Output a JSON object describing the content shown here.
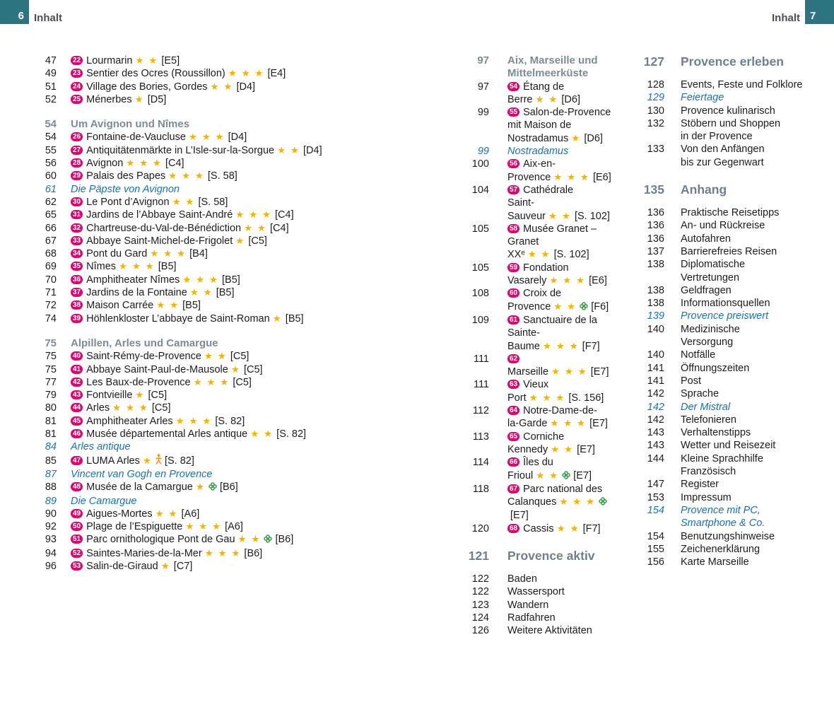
{
  "header": {
    "left_page_number": "6",
    "left_label": "Inhalt",
    "right_label": "Inhalt",
    "right_page_number": "7",
    "tab_color": "#2e7380"
  },
  "colors": {
    "badge": "#d9076f",
    "star": "#f4b400",
    "section_heading": "#7d8b99",
    "chapter_heading": "#6e7f90",
    "topic_italic": "#1a70b8",
    "body_text": "#1c1c1c"
  },
  "columns": [
    {
      "id": "col1",
      "entries": [
        {
          "page": "47",
          "kind": "poi",
          "badge": "22",
          "text": "Lourmarin",
          "stars": 2,
          "ref": "[E5]"
        },
        {
          "page": "49",
          "kind": "poi",
          "badge": "23",
          "text": "Sentier des Ocres (Roussillon)",
          "stars": 3,
          "ref": "[E4]"
        },
        {
          "page": "51",
          "kind": "poi",
          "badge": "24",
          "text": "Village des Bories, Gordes",
          "stars": 2,
          "ref": "[D4]"
        },
        {
          "page": "52",
          "kind": "poi",
          "badge": "25",
          "text": "Ménerbes",
          "stars": 1,
          "ref": "[D5]"
        },
        {
          "page": "54",
          "kind": "section",
          "text": "Um Avignon und Nîmes"
        },
        {
          "page": "54",
          "kind": "poi",
          "badge": "26",
          "text": "Fontaine-de-Vaucluse",
          "stars": 3,
          "ref": "[D4]"
        },
        {
          "page": "55",
          "kind": "poi",
          "badge": "27",
          "text": "Antiquitätenmärkte in L’Isle-sur-la-Sorgue",
          "stars": 2,
          "ref": "[D4]"
        },
        {
          "page": "56",
          "kind": "poi",
          "badge": "28",
          "text": "Avignon",
          "stars": 3,
          "ref": "[C4]"
        },
        {
          "page": "60",
          "kind": "poi",
          "badge": "29",
          "text": "Palais des Papes",
          "stars": 3,
          "ref": "[S. 58]"
        },
        {
          "page": "61",
          "kind": "topic",
          "text": "Die Päpste von Avignon"
        },
        {
          "page": "62",
          "kind": "poi",
          "badge": "30",
          "text": "Le Pont d’Avignon",
          "stars": 2,
          "ref": "[S. 58]"
        },
        {
          "page": "65",
          "kind": "poi",
          "badge": "31",
          "text": "Jardins de l’Abbaye Saint-André",
          "stars": 3,
          "ref": "[C4]"
        },
        {
          "page": "66",
          "kind": "poi",
          "badge": "32",
          "text": "Chartreuse-du-Val-de-Bénédiction",
          "stars": 2,
          "ref": "[C4]"
        },
        {
          "page": "67",
          "kind": "poi",
          "badge": "33",
          "text": "Abbaye Saint-Michel-de-Frigolet",
          "stars": 1,
          "ref": "[C5]"
        },
        {
          "page": "68",
          "kind": "poi",
          "badge": "34",
          "text": "Pont du Gard",
          "stars": 3,
          "ref": "[B4]"
        },
        {
          "page": "69",
          "kind": "poi",
          "badge": "35",
          "text": "Nîmes",
          "stars": 3,
          "ref": "[B5]"
        },
        {
          "page": "70",
          "kind": "poi",
          "badge": "36",
          "text": "Amphitheater Nîmes",
          "stars": 3,
          "ref": "[B5]"
        },
        {
          "page": "71",
          "kind": "poi",
          "badge": "37",
          "text": "Jardins de la Fontaine",
          "stars": 2,
          "ref": "[B5]"
        },
        {
          "page": "72",
          "kind": "poi",
          "badge": "38",
          "text": "Maison Carrée",
          "stars": 2,
          "ref": "[B5]"
        },
        {
          "page": "74",
          "kind": "poi",
          "badge": "39",
          "text": "Höhlenkloster L’abbaye de Saint-Roman",
          "stars": 1,
          "ref": "[B5]"
        },
        {
          "page": "75",
          "kind": "section",
          "text": "Alpillen, Arles und Camargue"
        },
        {
          "page": "75",
          "kind": "poi",
          "badge": "40",
          "text": "Saint-Rémy-de-Provence",
          "stars": 2,
          "ref": "[C5]"
        },
        {
          "page": "75",
          "kind": "poi",
          "badge": "41",
          "text": "Abbaye Saint-Paul-de-Mausole",
          "stars": 1,
          "ref": "[C5]"
        },
        {
          "page": "77",
          "kind": "poi",
          "badge": "42",
          "text": "Les Baux-de-Provence",
          "stars": 3,
          "ref": "[C5]"
        },
        {
          "page": "79",
          "kind": "poi",
          "badge": "43",
          "text": "Fontvieille",
          "stars": 1,
          "ref": "[C5]"
        },
        {
          "page": "80",
          "kind": "poi",
          "badge": "44",
          "text": "Arles",
          "stars": 3,
          "ref": "[C5]"
        },
        {
          "page": "81",
          "kind": "poi",
          "badge": "45",
          "text": "Amphitheater Arles",
          "stars": 3,
          "ref": "[S. 82]"
        },
        {
          "page": "81",
          "kind": "poi",
          "badge": "46",
          "text": "Musée départemental Arles antique",
          "stars": 2,
          "ref": "[S. 82]"
        },
        {
          "page": "84",
          "kind": "topic",
          "text": "Arles antique"
        },
        {
          "page": "85",
          "kind": "poi",
          "badge": "47",
          "text": "LUMA Arles",
          "stars": 1,
          "icon": "family-figure-icon",
          "ref": "[S. 82]"
        },
        {
          "page": "87",
          "kind": "topic",
          "text": "Vincent van Gogh en Provence"
        },
        {
          "page": "88",
          "kind": "poi",
          "badge": "48",
          "text": "Musée de la Camargue",
          "stars": 1,
          "icon": "nature-icon",
          "ref": "[B6]"
        },
        {
          "page": "89",
          "kind": "topic",
          "text": "Die Camargue"
        },
        {
          "page": "90",
          "kind": "poi",
          "badge": "49",
          "text": "Aigues-Mortes",
          "stars": 2,
          "ref": "[A6]"
        },
        {
          "page": "92",
          "kind": "poi",
          "badge": "50",
          "text": "Plage de l’Espiguette",
          "stars": 3,
          "ref": "[A6]"
        },
        {
          "page": "93",
          "kind": "poi",
          "badge": "51",
          "text": "Parc ornithologique Pont de Gau",
          "stars": 2,
          "icon": "nature-icon",
          "ref": "[B6]"
        },
        {
          "page": "94",
          "kind": "poi",
          "badge": "52",
          "text": "Saintes-Maries-de-la-Mer",
          "stars": 3,
          "ref": "[B6]"
        },
        {
          "page": "96",
          "kind": "poi",
          "badge": "53",
          "text": "Salin-de-Giraud",
          "stars": 1,
          "ref": "[C7]"
        }
      ]
    },
    {
      "id": "col2",
      "entries": [
        {
          "page": "97",
          "kind": "section",
          "text": "Aix, Marseille und\nMittelmeerküste"
        },
        {
          "page": "97",
          "kind": "poi",
          "badge": "54",
          "text": "Étang de\nBerre",
          "stars": 2,
          "ref": "[D6]"
        },
        {
          "page": "99",
          "kind": "poi",
          "badge": "55",
          "text": "Salon-de-Provence\nmit Maison de\nNostradamus",
          "stars": 1,
          "ref": "[D6]"
        },
        {
          "page": "99",
          "kind": "topic",
          "text": "Nostradamus"
        },
        {
          "page": "100",
          "kind": "poi",
          "badge": "56",
          "text": "Aix-en-\nProvence",
          "stars": 3,
          "ref": "[E6]"
        },
        {
          "page": "104",
          "kind": "poi",
          "badge": "57",
          "text": "Cathédrale\nSaint-Sauveur",
          "stars": 2,
          "ref": "[S. 102]"
        },
        {
          "page": "105",
          "kind": "poi",
          "badge": "58",
          "text": "Musée Granet –\nGranet XXᵉ",
          "stars": 2,
          "ref": "[S. 102]"
        },
        {
          "page": "105",
          "kind": "poi",
          "badge": "59",
          "text": "Fondation\nVasarely",
          "stars": 3,
          "ref": "[E6]"
        },
        {
          "page": "108",
          "kind": "poi",
          "badge": "60",
          "text": "Croix de\nProvence",
          "stars": 2,
          "icon": "nature-icon",
          "ref": "[F6]"
        },
        {
          "page": "109",
          "kind": "poi",
          "badge": "61",
          "text": "Sanctuaire de la\nSainte-Baume",
          "stars": 3,
          "ref": "[F7]"
        },
        {
          "page": "111",
          "kind": "poi",
          "badge": "62",
          "text": "Marseille",
          "stars": 3,
          "ref": "[E7]"
        },
        {
          "page": "111",
          "kind": "poi",
          "badge": "63",
          "text": "Vieux\nPort",
          "stars": 3,
          "ref": "[S. 156]"
        },
        {
          "page": "112",
          "kind": "poi",
          "badge": "64",
          "text": "Notre-Dame-de-\nla-Garde",
          "stars": 3,
          "ref": "[E7]"
        },
        {
          "page": "113",
          "kind": "poi",
          "badge": "65",
          "text": "Corniche\nKennedy",
          "stars": 2,
          "ref": "[E7]"
        },
        {
          "page": "114",
          "kind": "poi",
          "badge": "66",
          "text": "Îles du\nFrioul",
          "stars": 2,
          "icon": "nature-icon",
          "ref": "[E7]"
        },
        {
          "page": "118",
          "kind": "poi",
          "badge": "67",
          "text": "Parc national des\nCalanques",
          "stars": 3,
          "icon": "nature-icon",
          "ref": "[E7]"
        },
        {
          "page": "120",
          "kind": "poi",
          "badge": "68",
          "text": "Cassis",
          "stars": 2,
          "ref": "[F7]"
        },
        {
          "page": "121",
          "kind": "chapter",
          "text": "Provence aktiv"
        },
        {
          "page": "122",
          "kind": "plain",
          "text": "Baden"
        },
        {
          "page": "122",
          "kind": "plain",
          "text": "Wassersport"
        },
        {
          "page": "123",
          "kind": "plain",
          "text": "Wandern"
        },
        {
          "page": "124",
          "kind": "plain",
          "text": "Radfahren"
        },
        {
          "page": "126",
          "kind": "plain",
          "text": "Weitere Aktivitäten"
        }
      ]
    },
    {
      "id": "col3",
      "entries": [
        {
          "page": "127",
          "kind": "chapter",
          "text": "Provence erleben"
        },
        {
          "page": "128",
          "kind": "plain",
          "text": "Events, Feste und Folklore"
        },
        {
          "page": "129",
          "kind": "topic",
          "text": "Feiertage"
        },
        {
          "page": "130",
          "kind": "plain",
          "text": "Provence kulinarisch"
        },
        {
          "page": "132",
          "kind": "plain",
          "text": "Stöbern und Shoppen\nin der Provence"
        },
        {
          "page": "133",
          "kind": "plain",
          "text": "Von den Anfängen\nbis zur Gegenwart"
        },
        {
          "page": "135",
          "kind": "chapter",
          "text": "Anhang"
        },
        {
          "page": "136",
          "kind": "plain",
          "text": "Praktische Reisetipps"
        },
        {
          "page": "136",
          "kind": "plain",
          "text": "An- und Rückreise"
        },
        {
          "page": "136",
          "kind": "plain",
          "text": "Autofahren"
        },
        {
          "page": "137",
          "kind": "plain",
          "text": "Barrierefreies Reisen"
        },
        {
          "page": "138",
          "kind": "plain",
          "text": "Diplomatische\nVertretungen"
        },
        {
          "page": "138",
          "kind": "plain",
          "text": "Geldfragen"
        },
        {
          "page": "138",
          "kind": "plain",
          "text": "Informationsquellen"
        },
        {
          "page": "139",
          "kind": "topic",
          "text": "Provence preiswert"
        },
        {
          "page": "140",
          "kind": "plain",
          "text": "Medizinische\nVersorgung"
        },
        {
          "page": "140",
          "kind": "plain",
          "text": "Notfälle"
        },
        {
          "page": "141",
          "kind": "plain",
          "text": "Öffnungszeiten"
        },
        {
          "page": "141",
          "kind": "plain",
          "text": "Post"
        },
        {
          "page": "142",
          "kind": "plain",
          "text": "Sprache"
        },
        {
          "page": "142",
          "kind": "topic",
          "text": "Der Mistral"
        },
        {
          "page": "142",
          "kind": "plain",
          "text": "Telefonieren"
        },
        {
          "page": "143",
          "kind": "plain",
          "text": "Verhaltenstipps"
        },
        {
          "page": "143",
          "kind": "plain",
          "text": "Wetter und Reisezeit"
        },
        {
          "page": "144",
          "kind": "plain",
          "text": "Kleine Sprachhilfe\nFranzösisch"
        },
        {
          "page": "147",
          "kind": "plain",
          "text": "Register"
        },
        {
          "page": "153",
          "kind": "plain",
          "text": "Impressum"
        },
        {
          "page": "154",
          "kind": "topic",
          "text": "Provence mit PC,\nSmartphone & Co."
        },
        {
          "page": "154",
          "kind": "plain",
          "text": "Benutzungshinweise"
        },
        {
          "page": "155",
          "kind": "plain",
          "text": "Zeichenerklärung"
        },
        {
          "page": "156",
          "kind": "plain",
          "text": "Karte Marseille"
        }
      ]
    }
  ]
}
